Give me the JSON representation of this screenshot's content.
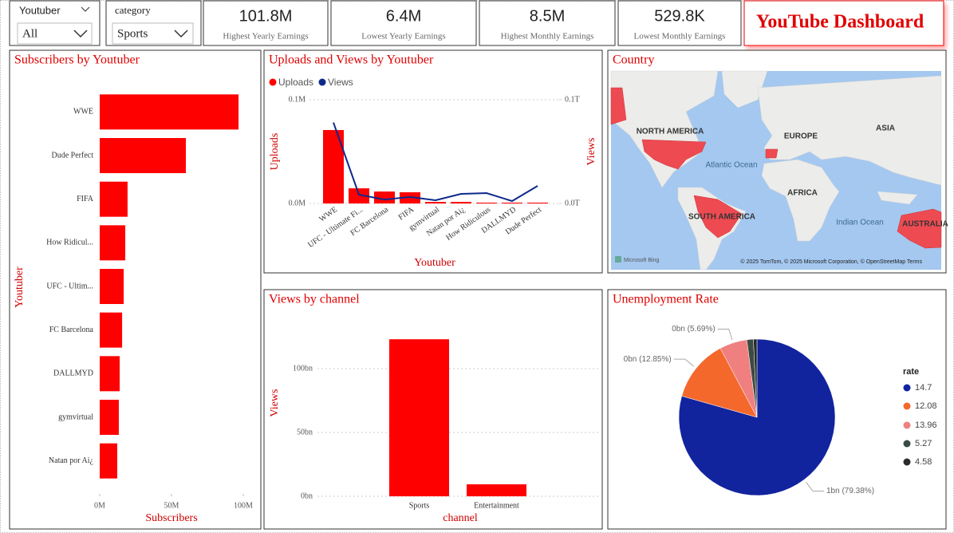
{
  "filters": [
    {
      "label": "Youtuber",
      "value": "All"
    },
    {
      "label": "category",
      "value": "Sports"
    }
  ],
  "kpis": [
    {
      "value": "101.8M",
      "label": "Highest Yearly Earnings"
    },
    {
      "value": "6.4M",
      "label": "Lowest Yearly Earnings"
    },
    {
      "value": "8.5M",
      "label": "Highest Monthly Earnings"
    },
    {
      "value": "529.8K",
      "label": "Lowest Monthly Earnings"
    }
  ],
  "title": "YouTube Dashboard",
  "map": {
    "title": "Country",
    "labels": [
      "NORTH AMERICA",
      "EUROPE",
      "ASIA",
      "Atlantic Ocean",
      "AFRICA",
      "SOUTH AMERICA",
      "Indian Ocean",
      "AUSTRALIA"
    ],
    "logo": "Microsoft Bing",
    "attribution": "© 2025 TomTom, © 2025 Microsoft Corporation, © OpenStreetMap  Terms"
  },
  "chart_data": [
    {
      "type": "hbar",
      "title": "Subscribers by Youtuber",
      "xlabel": "Subscribers",
      "ylabel": "Youtuber",
      "color": "#ff0000",
      "categories": [
        "WWE",
        "Dude Perfect",
        "FIFA",
        "How Ridicul...",
        "UFC - Ultim...",
        "FC Barcelona",
        "DALLMYD",
        "gymvirtual",
        "Natan por Ai¿"
      ],
      "values": [
        96700000,
        60000000,
        19400000,
        17800000,
        16700000,
        15600000,
        13900000,
        13300000,
        12200000
      ],
      "xlim": [
        0,
        100000000
      ],
      "xticks": [
        {
          "value": 0,
          "label": "0M"
        },
        {
          "value": 50000000,
          "label": "50M"
        },
        {
          "value": 100000000,
          "label": "100M"
        }
      ]
    },
    {
      "type": "combo",
      "title": "Uploads and Views by Youtuber",
      "xlabel": "Youtuber",
      "ylabel": "Uploads",
      "y2label": "Views",
      "grid": true,
      "categories": [
        "WWE",
        "UFC - Ultimate Fi...",
        "FC Barcelona",
        "FIFA",
        "gymvirtual",
        "Natan por Ai¿",
        "How Ridiculous",
        "DALLMYD",
        "Dude Perfect"
      ],
      "series": [
        {
          "name": "Uploads",
          "kind": "bar",
          "color": "#ff0000",
          "values": [
            70800,
            14600,
            11500,
            10800,
            1500,
            1500,
            800,
            800,
            800
          ]
        },
        {
          "name": "Views",
          "kind": "line",
          "axis": "y2",
          "color": "#0d2a8a",
          "values": [
            78000000000,
            8500000000,
            3800000000,
            6200000000,
            3100000000,
            9200000000,
            10000000000,
            2300000000,
            16900000000
          ]
        }
      ],
      "ylim": [
        0,
        100000
      ],
      "yticks": [
        {
          "value": 0,
          "label": "0.0M"
        },
        {
          "value": 100000,
          "label": "0.1M"
        }
      ],
      "y2lim": [
        0,
        100000000000
      ],
      "y2ticks": [
        {
          "value": 0,
          "label": "0.0T"
        },
        {
          "value": 100000000000,
          "label": "0.1T"
        }
      ]
    },
    {
      "type": "bar",
      "title": "Views by channel",
      "xlabel": "channel",
      "ylabel": "Views",
      "color": "#ff0000",
      "grid": true,
      "categories": [
        "Sports",
        "Entertainment"
      ],
      "values": [
        123000000000,
        9400000000
      ],
      "ylim": [
        0,
        140000000000
      ],
      "yticks": [
        {
          "value": 0,
          "label": "0bn"
        },
        {
          "value": 50000000000,
          "label": "50bn"
        },
        {
          "value": 100000000000,
          "label": "100bn"
        }
      ]
    },
    {
      "type": "pie",
      "title": "Unemployment Rate",
      "legend_title": "rate",
      "categories": [
        "14.7",
        "12.08",
        "13.96",
        "5.27",
        "4.58"
      ],
      "values": [
        79.38,
        12.85,
        5.69,
        1.35,
        0.73
      ],
      "value_labels": [
        "1bn (79.38%)",
        "0bn (12.85%)",
        "0bn (5.69%)",
        null,
        null
      ],
      "colors": [
        "#12239e",
        "#f4682c",
        "#f08080",
        "#3b4a45",
        "#2b2b2b"
      ]
    }
  ]
}
